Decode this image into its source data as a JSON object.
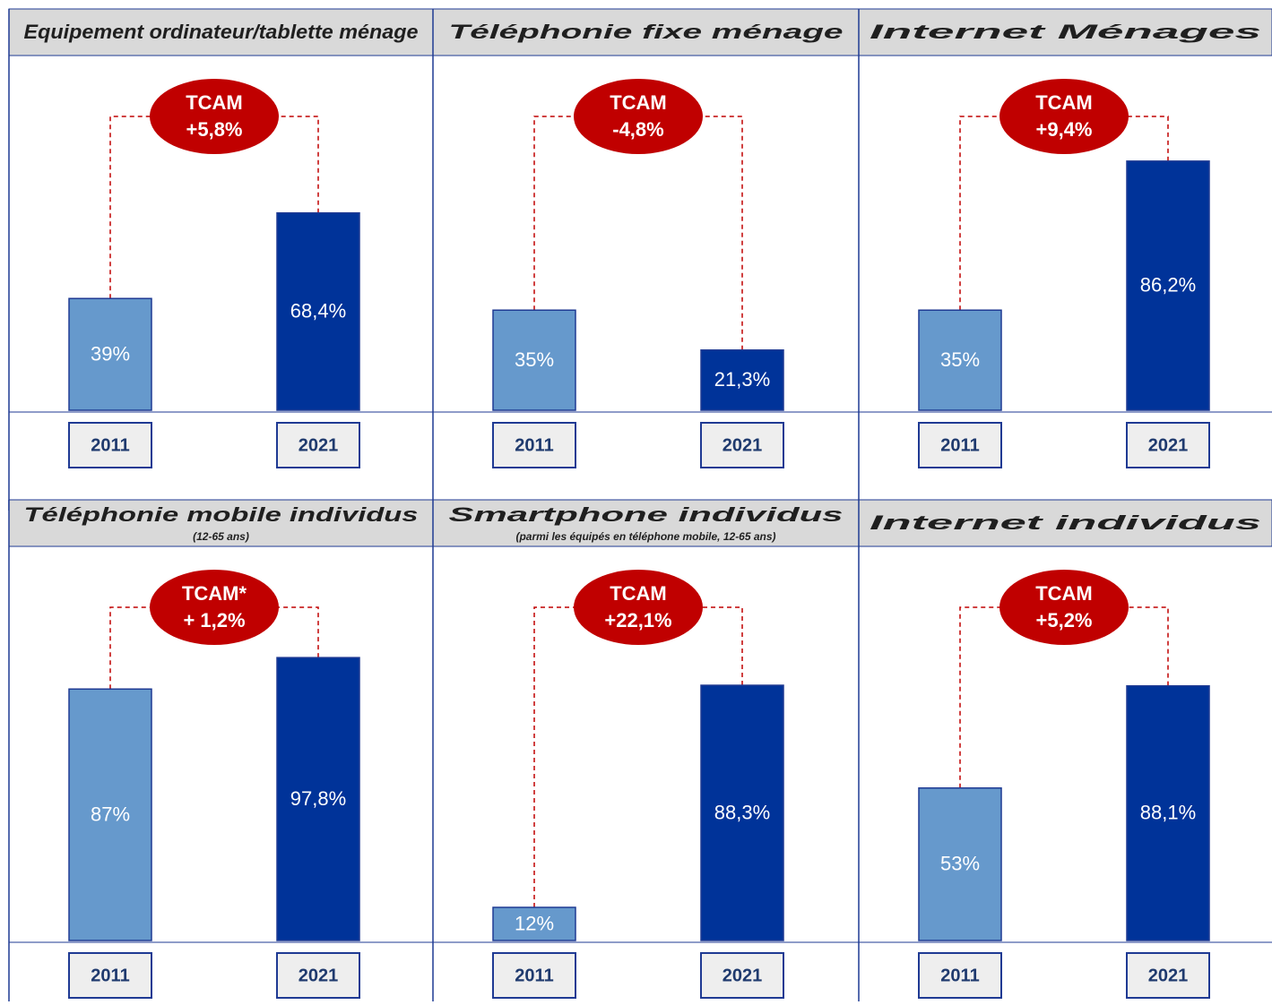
{
  "chart_data": [
    {
      "type": "bar",
      "title": "Equipement ordinateur/tablette ménage",
      "annotation": [
        "TCAM",
        "+5,8%"
      ],
      "categories": [
        "2011",
        "2021"
      ],
      "values": [
        39,
        68.4
      ],
      "value_labels": [
        "39%",
        "68,4%"
      ],
      "colors": [
        "#6699cc",
        "#003399"
      ]
    },
    {
      "type": "bar",
      "title": "Téléphonie fixe ménage",
      "annotation": [
        "TCAM",
        "-4,8%"
      ],
      "categories": [
        "2011",
        "2021"
      ],
      "values": [
        35,
        21.3
      ],
      "value_labels": [
        "35%",
        "21,3%"
      ],
      "colors": [
        "#6699cc",
        "#003399"
      ]
    },
    {
      "type": "bar",
      "title": "Internet Ménages",
      "annotation": [
        "TCAM",
        "+9,4%"
      ],
      "categories": [
        "2011",
        "2021"
      ],
      "values": [
        35,
        86.2
      ],
      "value_labels": [
        "35%",
        "86,2%"
      ],
      "colors": [
        "#6699cc",
        "#003399"
      ]
    },
    {
      "type": "bar",
      "title": "Téléphonie mobile individus",
      "subtitle": "(12-65 ans)",
      "annotation": [
        "TCAM*",
        "+ 1,2%"
      ],
      "categories": [
        "2011",
        "2021"
      ],
      "values": [
        87,
        97.8
      ],
      "value_labels": [
        "87%",
        "97,8%"
      ],
      "colors": [
        "#6699cc",
        "#003399"
      ]
    },
    {
      "type": "bar",
      "title": "Smartphone individus",
      "subtitle": "(parmi les équipés en téléphone mobile, 12-65 ans)",
      "annotation": [
        "TCAM",
        "+22,1%"
      ],
      "categories": [
        "2011",
        "2021"
      ],
      "values": [
        12,
        88.3
      ],
      "value_labels": [
        "12%",
        "88,3%"
      ],
      "colors": [
        "#6699cc",
        "#003399"
      ]
    },
    {
      "type": "bar",
      "title": "Internet individus",
      "annotation": [
        "TCAM",
        "+5,2%"
      ],
      "categories": [
        "2011",
        "2021"
      ],
      "values": [
        53,
        88.1
      ],
      "value_labels": [
        "53%",
        "88,1%"
      ],
      "colors": [
        "#6699cc",
        "#003399"
      ]
    }
  ]
}
